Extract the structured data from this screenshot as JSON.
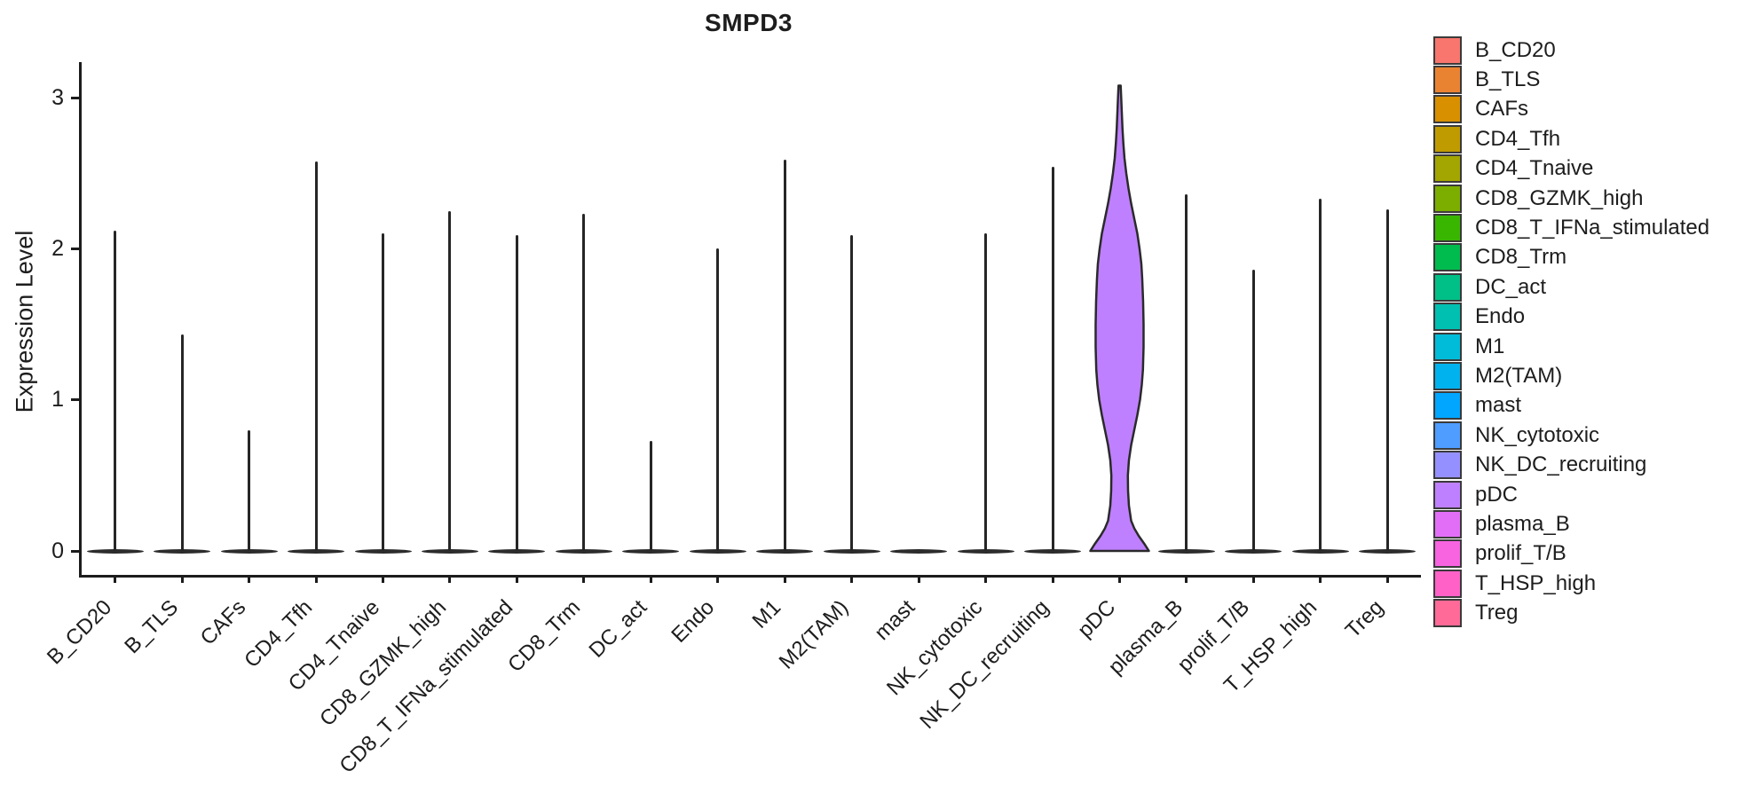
{
  "title": "SMPD3",
  "y_axis": {
    "label": "Expression Level"
  },
  "chart_data": {
    "type": "violin",
    "title": "SMPD3",
    "xlabel": "",
    "ylabel": "Expression Level",
    "ylim": [
      -0.16,
      3.24
    ],
    "yticks": [
      0,
      1,
      2,
      3
    ],
    "grid": false,
    "legend_position": "right",
    "categories": [
      "B_CD20",
      "B_TLS",
      "CAFs",
      "CD4_Tfh",
      "CD4_Tnaive",
      "CD8_GZMK_high",
      "CD8_T_IFNa_stimulated",
      "CD8_Trm",
      "DC_act",
      "Endo",
      "M1",
      "M2(TAM)",
      "mast",
      "NK_cytotoxic",
      "NK_DC_recruiting",
      "pDC",
      "plasma_B",
      "prolif_T/B",
      "T_HSP_high",
      "Treg"
    ],
    "max_expression": [
      2.12,
      1.43,
      0.8,
      2.58,
      2.1,
      2.25,
      2.09,
      2.23,
      0.73,
      2.0,
      2.59,
      2.09,
      0.0,
      2.1,
      2.54,
      3.08,
      2.36,
      1.86,
      2.33,
      2.26
    ],
    "colors": [
      "#F8766D",
      "#EA8331",
      "#D89000",
      "#C09B00",
      "#A3A500",
      "#7CAE00",
      "#39B600",
      "#00BB4E",
      "#00C087",
      "#00C0B2",
      "#00BCD8",
      "#00B2EE",
      "#00A6FF",
      "#4E9DFF",
      "#9590FF",
      "#BF80FF",
      "#E26EF7",
      "#F863DF",
      "#FF61C7",
      "#FF6A99"
    ],
    "full_violin_category": "pDC",
    "full_violin_fill": "#BF80FF",
    "full_violin_outline": "#2a2a2a",
    "pdc_violin_profile": [
      [
        0.0,
        33.0
      ],
      [
        0.05,
        27.5
      ],
      [
        0.1,
        21.5
      ],
      [
        0.15,
        16.5
      ],
      [
        0.2,
        13.0
      ],
      [
        0.3,
        10.5
      ],
      [
        0.4,
        9.5
      ],
      [
        0.5,
        9.3
      ],
      [
        0.6,
        10.5
      ],
      [
        0.7,
        13.0
      ],
      [
        0.8,
        16.5
      ],
      [
        0.9,
        20.0
      ],
      [
        1.0,
        23.0
      ],
      [
        1.1,
        25.0
      ],
      [
        1.2,
        26.3
      ],
      [
        1.35,
        27.0
      ],
      [
        1.5,
        27.0
      ],
      [
        1.65,
        26.5
      ],
      [
        1.8,
        25.5
      ],
      [
        1.9,
        24.5
      ],
      [
        2.0,
        22.5
      ],
      [
        2.1,
        20.0
      ],
      [
        2.2,
        16.5
      ],
      [
        2.3,
        13.0
      ],
      [
        2.4,
        10.0
      ],
      [
        2.5,
        7.5
      ],
      [
        2.6,
        5.5
      ],
      [
        2.7,
        4.2
      ],
      [
        2.8,
        3.2
      ],
      [
        2.9,
        2.5
      ],
      [
        3.0,
        1.8
      ],
      [
        3.08,
        1.2
      ]
    ],
    "legend": {
      "entries": [
        {
          "label": "B_CD20",
          "color": "#F8766D"
        },
        {
          "label": "B_TLS",
          "color": "#EA8331"
        },
        {
          "label": "CAFs",
          "color": "#D89000"
        },
        {
          "label": "CD4_Tfh",
          "color": "#C09B00"
        },
        {
          "label": "CD4_Tnaive",
          "color": "#A3A500"
        },
        {
          "label": "CD8_GZMK_high",
          "color": "#7CAE00"
        },
        {
          "label": "CD8_T_IFNa_stimulated",
          "color": "#39B600"
        },
        {
          "label": "CD8_Trm",
          "color": "#00BB4E"
        },
        {
          "label": "DC_act",
          "color": "#00C087"
        },
        {
          "label": "Endo",
          "color": "#00C0B2"
        },
        {
          "label": "M1",
          "color": "#00BCD8"
        },
        {
          "label": "M2(TAM)",
          "color": "#00B2EE"
        },
        {
          "label": "mast",
          "color": "#00A6FF"
        },
        {
          "label": "NK_cytotoxic",
          "color": "#4E9DFF"
        },
        {
          "label": "NK_DC_recruiting",
          "color": "#9590FF"
        },
        {
          "label": "pDC",
          "color": "#BF80FF"
        },
        {
          "label": "plasma_B",
          "color": "#E26EF7"
        },
        {
          "label": "prolif_T/B",
          "color": "#F863DF"
        },
        {
          "label": "T_HSP_high",
          "color": "#FF61C7"
        },
        {
          "label": "Treg",
          "color": "#FF6A99"
        }
      ]
    }
  }
}
